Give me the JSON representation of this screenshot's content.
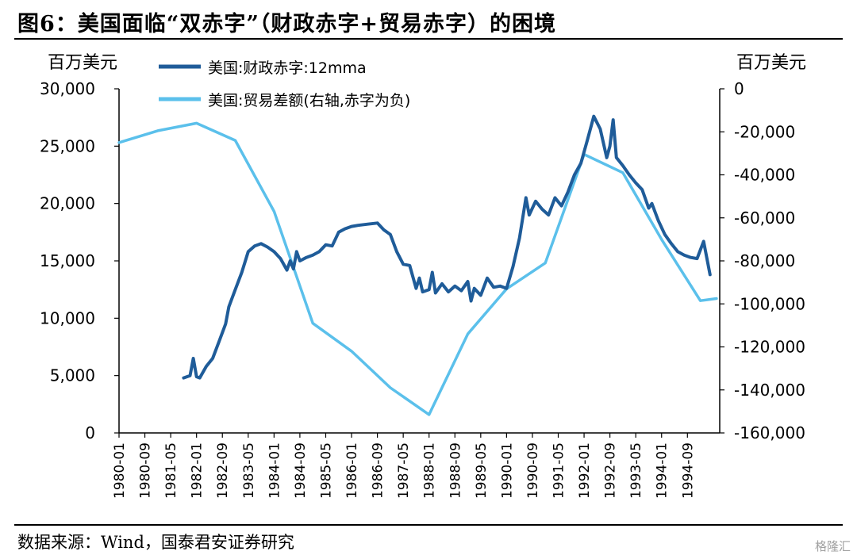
{
  "title": "图6：美国面临“双赤字”（财政赤字+贸易赤字）的困境",
  "source": "数据来源：Wind，国泰君安证券研究",
  "watermark": "格隆汇",
  "colors": {
    "fiscal": "#1f5c99",
    "trade": "#5bc0eb",
    "axis": "#000000"
  },
  "chart_data": {
    "type": "line",
    "y_left": {
      "unit_label": "百万美元",
      "range": [
        0,
        30000
      ],
      "ticks": [
        "0",
        "5,000",
        "10,000",
        "15,000",
        "20,000",
        "25,000",
        "30,000"
      ]
    },
    "y_right": {
      "unit_label": "百万美元",
      "range": [
        -160000,
        0
      ],
      "ticks": [
        "-160,000",
        "-140,000",
        "-120,000",
        "-100,000",
        "-80,000",
        "-60,000",
        "-40,000",
        "-20,000",
        "0"
      ]
    },
    "x_range": [
      "1980-01",
      "1995-07"
    ],
    "x_ticks": [
      "1980-01",
      "1980-09",
      "1981-05",
      "1982-01",
      "1982-09",
      "1983-05",
      "1984-01",
      "1984-09",
      "1985-05",
      "1986-01",
      "1986-09",
      "1987-05",
      "1988-01",
      "1988-09",
      "1989-05",
      "1990-01",
      "1990-09",
      "1991-05",
      "1992-01",
      "1992-09",
      "1993-05",
      "1994-01",
      "1994-09"
    ],
    "legend": [
      "美国:财政赤字:12mma",
      "美国:贸易差额(右轴,赤字为负)"
    ],
    "series": [
      {
        "name": "美国:财政赤字:12mma",
        "axis": "left",
        "points": [
          [
            "1981-09",
            4800
          ],
          [
            "1981-11",
            5000
          ],
          [
            "1981-12",
            6500
          ],
          [
            "1982-01",
            4900
          ],
          [
            "1982-02",
            4800
          ],
          [
            "1982-04",
            5800
          ],
          [
            "1982-06",
            6500
          ],
          [
            "1982-08",
            8000
          ],
          [
            "1982-10",
            9500
          ],
          [
            "1982-11",
            11000
          ],
          [
            "1983-01",
            12500
          ],
          [
            "1983-03",
            14000
          ],
          [
            "1983-05",
            15800
          ],
          [
            "1983-07",
            16300
          ],
          [
            "1983-09",
            16500
          ],
          [
            "1983-11",
            16200
          ],
          [
            "1984-01",
            15800
          ],
          [
            "1984-03",
            15200
          ],
          [
            "1984-05",
            14200
          ],
          [
            "1984-06",
            15000
          ],
          [
            "1984-07",
            14300
          ],
          [
            "1984-08",
            15800
          ],
          [
            "1984-09",
            15000
          ],
          [
            "1984-11",
            15300
          ],
          [
            "1985-01",
            15500
          ],
          [
            "1985-03",
            15800
          ],
          [
            "1985-05",
            16400
          ],
          [
            "1985-07",
            16300
          ],
          [
            "1985-09",
            17500
          ],
          [
            "1985-11",
            17800
          ],
          [
            "1986-01",
            18000
          ],
          [
            "1986-03",
            18100
          ],
          [
            "1986-06",
            18200
          ],
          [
            "1986-09",
            18300
          ],
          [
            "1986-11",
            17700
          ],
          [
            "1987-01",
            17300
          ],
          [
            "1987-03",
            15800
          ],
          [
            "1987-05",
            14700
          ],
          [
            "1987-07",
            14600
          ],
          [
            "1987-09",
            12600
          ],
          [
            "1987-10",
            13500
          ],
          [
            "1987-11",
            12300
          ],
          [
            "1988-01",
            12500
          ],
          [
            "1988-02",
            14000
          ],
          [
            "1988-03",
            12200
          ],
          [
            "1988-05",
            13000
          ],
          [
            "1988-07",
            12300
          ],
          [
            "1988-09",
            12800
          ],
          [
            "1988-11",
            12400
          ],
          [
            "1989-01",
            13200
          ],
          [
            "1989-02",
            11500
          ],
          [
            "1989-03",
            12600
          ],
          [
            "1989-05",
            12000
          ],
          [
            "1989-07",
            13500
          ],
          [
            "1989-09",
            12700
          ],
          [
            "1989-11",
            12800
          ],
          [
            "1990-01",
            12600
          ],
          [
            "1990-03",
            14500
          ],
          [
            "1990-05",
            17000
          ],
          [
            "1990-07",
            20500
          ],
          [
            "1990-08",
            19000
          ],
          [
            "1990-10",
            20200
          ],
          [
            "1990-12",
            19500
          ],
          [
            "1991-02",
            19000
          ],
          [
            "1991-04",
            20500
          ],
          [
            "1991-06",
            19800
          ],
          [
            "1991-08",
            21000
          ],
          [
            "1991-10",
            22500
          ],
          [
            "1991-12",
            23500
          ],
          [
            "1992-02",
            25500
          ],
          [
            "1992-04",
            27600
          ],
          [
            "1992-06",
            26500
          ],
          [
            "1992-08",
            24000
          ],
          [
            "1992-09",
            25000
          ],
          [
            "1992-10",
            27300
          ],
          [
            "1992-11",
            24000
          ],
          [
            "1993-01",
            23300
          ],
          [
            "1993-03",
            22500
          ],
          [
            "1993-05",
            21800
          ],
          [
            "1993-07",
            21200
          ],
          [
            "1993-09",
            19600
          ],
          [
            "1993-10",
            20000
          ],
          [
            "1993-12",
            18500
          ],
          [
            "1994-02",
            17300
          ],
          [
            "1994-04",
            16500
          ],
          [
            "1994-06",
            15800
          ],
          [
            "1994-08",
            15500
          ],
          [
            "1994-10",
            15300
          ],
          [
            "1994-12",
            15200
          ],
          [
            "1995-02",
            16700
          ],
          [
            "1995-04",
            13800
          ]
        ]
      },
      {
        "name": "美国:贸易差额(右轴,赤字为负)",
        "axis": "right",
        "points": [
          [
            "1980-01",
            -25000
          ],
          [
            "1981-01",
            -19500
          ],
          [
            "1982-01",
            -16000
          ],
          [
            "1983-01",
            -24000
          ],
          [
            "1984-01",
            -57000
          ],
          [
            "1985-01",
            -109000
          ],
          [
            "1986-01",
            -122000
          ],
          [
            "1987-01",
            -139000
          ],
          [
            "1988-01",
            -151500
          ],
          [
            "1989-01",
            -114000
          ],
          [
            "1990-01",
            -93000
          ],
          [
            "1991-01",
            -81000
          ],
          [
            "1992-01",
            -30500
          ],
          [
            "1993-01",
            -39000
          ],
          [
            "1994-01",
            -70000
          ],
          [
            "1995-01",
            -98500
          ],
          [
            "1995-06",
            -97500
          ]
        ]
      }
    ]
  }
}
